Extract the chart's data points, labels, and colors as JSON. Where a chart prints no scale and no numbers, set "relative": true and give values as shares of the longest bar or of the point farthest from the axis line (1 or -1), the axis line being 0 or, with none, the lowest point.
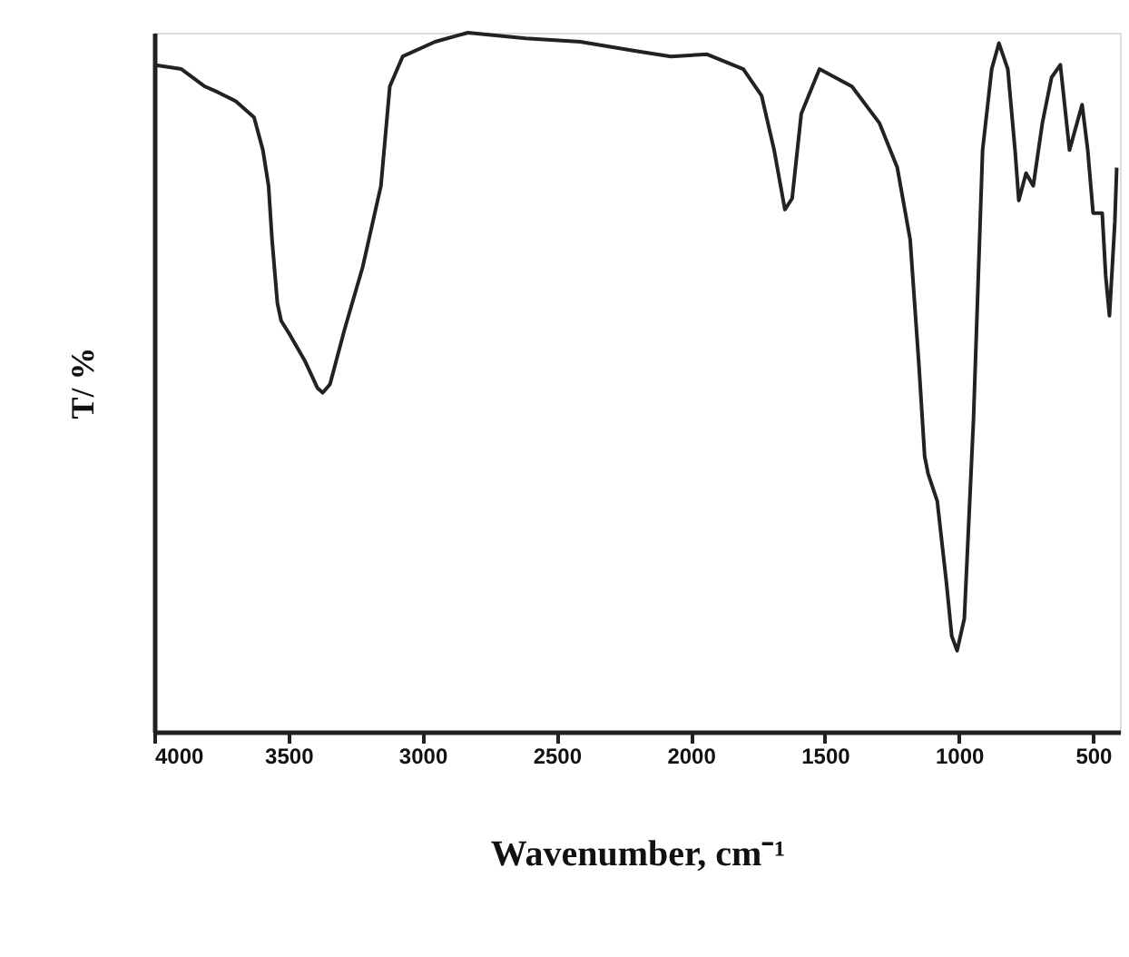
{
  "chart_data": {
    "type": "line",
    "xlabel": "Wavenumber, cm⁻¹",
    "ylabel": "T/ %",
    "relative": true,
    "color": "#222222",
    "grid": false,
    "marker": "none",
    "line_style": "solid",
    "xlim": [
      4000,
      400
    ],
    "xticks": [
      4000,
      3500,
      3000,
      2500,
      2000,
      1500,
      1000,
      500
    ],
    "x": [
      4000,
      3899,
      3811,
      3764,
      3696,
      3628,
      3595,
      3574,
      3561,
      3541,
      3527,
      3493,
      3439,
      3392,
      3372,
      3345,
      3291,
      3223,
      3155,
      3122,
      3074,
      2953,
      2831,
      2615,
      2412,
      2209,
      2074,
      1939,
      1804,
      1736,
      1689,
      1649,
      1622,
      1588,
      1520,
      1399,
      1297,
      1230,
      1182,
      1149,
      1128,
      1115,
      1081,
      1047,
      1027,
      1007,
      980,
      946,
      912,
      878,
      851,
      818,
      791,
      777,
      750,
      723,
      689,
      655,
      622,
      588,
      541,
      520,
      500,
      466,
      453,
      439,
      419,
      412
    ],
    "values": [
      0.954,
      0.948,
      0.923,
      0.915,
      0.902,
      0.879,
      0.832,
      0.781,
      0.704,
      0.613,
      0.588,
      0.567,
      0.531,
      0.492,
      0.485,
      0.497,
      0.575,
      0.665,
      0.781,
      0.923,
      0.966,
      0.987,
      1.0,
      0.992,
      0.987,
      0.974,
      0.966,
      0.969,
      0.948,
      0.91,
      0.832,
      0.747,
      0.763,
      0.884,
      0.948,
      0.923,
      0.871,
      0.807,
      0.704,
      0.523,
      0.394,
      0.369,
      0.33,
      0.214,
      0.137,
      0.116,
      0.162,
      0.446,
      0.832,
      0.948,
      0.985,
      0.948,
      0.832,
      0.76,
      0.799,
      0.781,
      0.871,
      0.936,
      0.954,
      0.832,
      0.897,
      0.832,
      0.742,
      0.742,
      0.652,
      0.595,
      0.729,
      0.807
    ]
  }
}
